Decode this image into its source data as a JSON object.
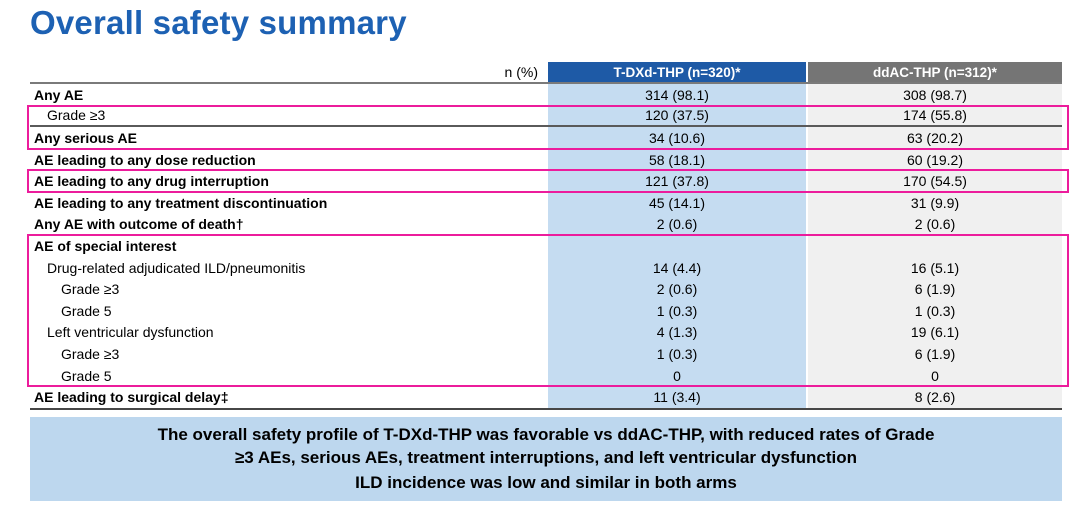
{
  "title": "Overall safety summary",
  "colors": {
    "title_blue": "#1d61b3",
    "header_blue": "#1e5aa6",
    "header_gray": "#757575",
    "cell_blue": "#c5dcf1",
    "cell_gray": "#f0f0f0",
    "highlight_pink": "#ec1c9c",
    "callout_bg": "#bdd7ee"
  },
  "table": {
    "unit_label": "n (%)",
    "columns": [
      {
        "label": "T-DXd-THP (n=320)*"
      },
      {
        "label": "ddAC-THP (n=312)*"
      }
    ],
    "rows": [
      {
        "label": "Any AE",
        "tdxd": "314 (98.1)",
        "ddac": "308 (98.7)"
      },
      {
        "label": "Grade ≥3",
        "tdxd": "120 (37.5)",
        "ddac": "174 (55.8)"
      },
      {
        "label": "Any serious AE",
        "tdxd": "34 (10.6)",
        "ddac": "63 (20.2)"
      },
      {
        "label": "AE leading to any dose reduction",
        "tdxd": "58 (18.1)",
        "ddac": "60 (19.2)"
      },
      {
        "label": "AE leading to any drug interruption",
        "tdxd": "121 (37.8)",
        "ddac": "170 (54.5)"
      },
      {
        "label": "AE leading to any treatment discontinuation",
        "tdxd": "45 (14.1)",
        "ddac": "31 (9.9)"
      },
      {
        "label": "Any AE with outcome of death†",
        "tdxd": "2 (0.6)",
        "ddac": "2 (0.6)"
      },
      {
        "label": "AE of special interest",
        "tdxd": "",
        "ddac": ""
      },
      {
        "label": "Drug-related adjudicated ILD/pneumonitis",
        "tdxd": "14 (4.4)",
        "ddac": "16 (5.1)"
      },
      {
        "label": "Grade ≥3",
        "tdxd": "2 (0.6)",
        "ddac": "6 (1.9)"
      },
      {
        "label": "Grade 5",
        "tdxd": "1 (0.3)",
        "ddac": "1 (0.3)"
      },
      {
        "label": "Left ventricular dysfunction",
        "tdxd": "4 (1.3)",
        "ddac": "19 (6.1)"
      },
      {
        "label": "Grade ≥3",
        "tdxd": "1 (0.3)",
        "ddac": "6 (1.9)"
      },
      {
        "label": "Grade 5",
        "tdxd": "0",
        "ddac": "0"
      },
      {
        "label": "AE leading to surgical delay‡",
        "tdxd": "11 (3.4)",
        "ddac": "8 (2.6)"
      }
    ]
  },
  "callout": {
    "sentence1": "The overall safety profile of T-DXd-THP was favorable vs ddAC-THP, with reduced rates of Grade ≥3 AEs, serious AEs, treatment interruptions, and left ventricular dysfunction",
    "sentence2": "ILD incidence was low and similar in both arms"
  }
}
